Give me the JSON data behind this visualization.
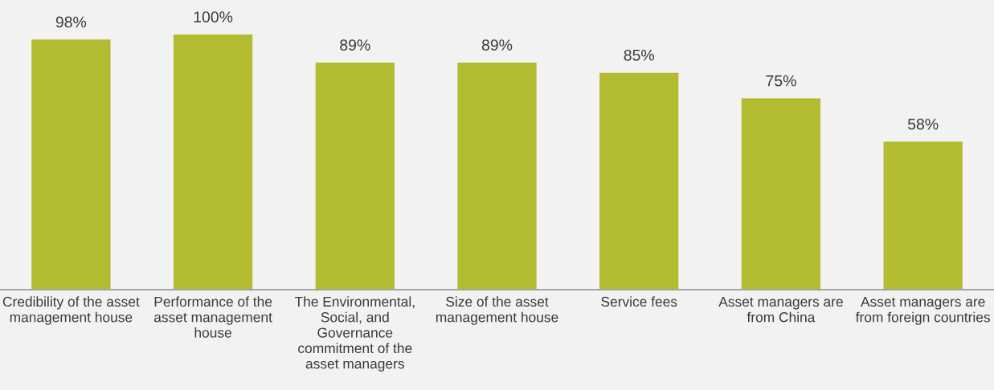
{
  "chart_data": {
    "type": "bar",
    "categories": [
      "Credibility of the asset\nmanagement house",
      "Performance of the\nasset management\nhouse",
      "The Environmental,\nSocial, and\nGovernance\ncommitment of the\nasset managers",
      "Size of the asset\nmanagement house",
      "Service fees",
      "Asset managers are\nfrom China",
      "Asset managers are\nfrom foreign countries"
    ],
    "values": [
      98,
      100,
      89,
      89,
      85,
      75,
      58
    ],
    "value_labels": [
      "98%",
      "100%",
      "89%",
      "89%",
      "85%",
      "75%",
      "58%"
    ],
    "color": "#b2bb32",
    "grid": false,
    "legend": false
  }
}
